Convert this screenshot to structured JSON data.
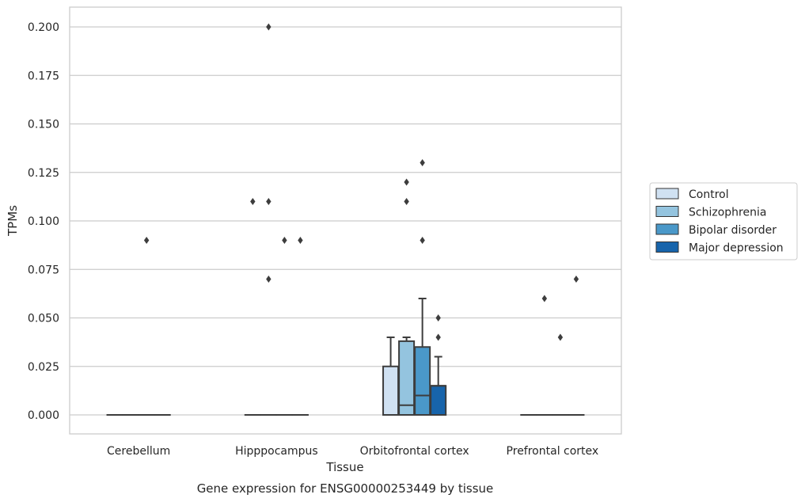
{
  "chart_data": {
    "type": "box",
    "title": "",
    "caption": "Gene expression for ENSG00000253449 by tissue",
    "xlabel": "Tissue",
    "ylabel": "TPMs",
    "ylim": [
      -0.01,
      0.21
    ],
    "yticks": [
      "0.000",
      "0.025",
      "0.050",
      "0.075",
      "0.100",
      "0.125",
      "0.150",
      "0.175",
      "0.200"
    ],
    "grid": "horizontal",
    "legend_position": "right",
    "categories": [
      "Cerebellum",
      "Hipppocampus",
      "Orbitofrontal cortex",
      "Prefrontal cortex"
    ],
    "series": [
      {
        "name": "Control",
        "color": "#d0e1f2",
        "boxes": [
          {
            "q1": 0,
            "median": 0,
            "q3": 0,
            "whisker_low": 0,
            "whisker_high": 0,
            "outliers": []
          },
          {
            "q1": 0,
            "median": 0,
            "q3": 0,
            "whisker_low": 0,
            "whisker_high": 0,
            "outliers": [
              0.11
            ]
          },
          {
            "q1": 0,
            "median": 0,
            "q3": 0.025,
            "whisker_low": 0,
            "whisker_high": 0.04,
            "outliers": []
          },
          {
            "q1": 0,
            "median": 0,
            "q3": 0,
            "whisker_low": 0,
            "whisker_high": 0,
            "outliers": []
          }
        ]
      },
      {
        "name": "Schizophrenia",
        "color": "#94c4df",
        "boxes": [
          {
            "q1": 0,
            "median": 0,
            "q3": 0,
            "whisker_low": 0,
            "whisker_high": 0,
            "outliers": []
          },
          {
            "q1": 0,
            "median": 0,
            "q3": 0,
            "whisker_low": 0,
            "whisker_high": 0,
            "outliers": [
              0.2,
              0.11,
              0.07
            ]
          },
          {
            "q1": 0,
            "median": 0.005,
            "q3": 0.038,
            "whisker_low": 0,
            "whisker_high": 0.04,
            "outliers": [
              0.12,
              0.11
            ]
          },
          {
            "q1": 0,
            "median": 0,
            "q3": 0,
            "whisker_low": 0,
            "whisker_high": 0,
            "outliers": [
              0.06
            ]
          }
        ]
      },
      {
        "name": "Bipolar disorder",
        "color": "#4a98c9",
        "boxes": [
          {
            "q1": 0,
            "median": 0,
            "q3": 0,
            "whisker_low": 0,
            "whisker_high": 0,
            "outliers": [
              0.09
            ]
          },
          {
            "q1": 0,
            "median": 0,
            "q3": 0,
            "whisker_low": 0,
            "whisker_high": 0,
            "outliers": [
              0.09
            ]
          },
          {
            "q1": 0,
            "median": 0.01,
            "q3": 0.035,
            "whisker_low": 0,
            "whisker_high": 0.06,
            "outliers": [
              0.13,
              0.09
            ]
          },
          {
            "q1": 0,
            "median": 0,
            "q3": 0,
            "whisker_low": 0,
            "whisker_high": 0,
            "outliers": [
              0.04
            ]
          }
        ]
      },
      {
        "name": "Major depression",
        "color": "#1764ab",
        "boxes": [
          {
            "q1": 0,
            "median": 0,
            "q3": 0,
            "whisker_low": 0,
            "whisker_high": 0,
            "outliers": []
          },
          {
            "q1": 0,
            "median": 0,
            "q3": 0,
            "whisker_low": 0,
            "whisker_high": 0,
            "outliers": [
              0.09
            ]
          },
          {
            "q1": 0,
            "median": 0.015,
            "q3": 0.015,
            "whisker_low": 0,
            "whisker_high": 0.03,
            "outliers": [
              0.05,
              0.04
            ]
          },
          {
            "q1": 0,
            "median": 0,
            "q3": 0,
            "whisker_low": 0,
            "whisker_high": 0,
            "outliers": [
              0.07
            ]
          }
        ]
      }
    ]
  }
}
